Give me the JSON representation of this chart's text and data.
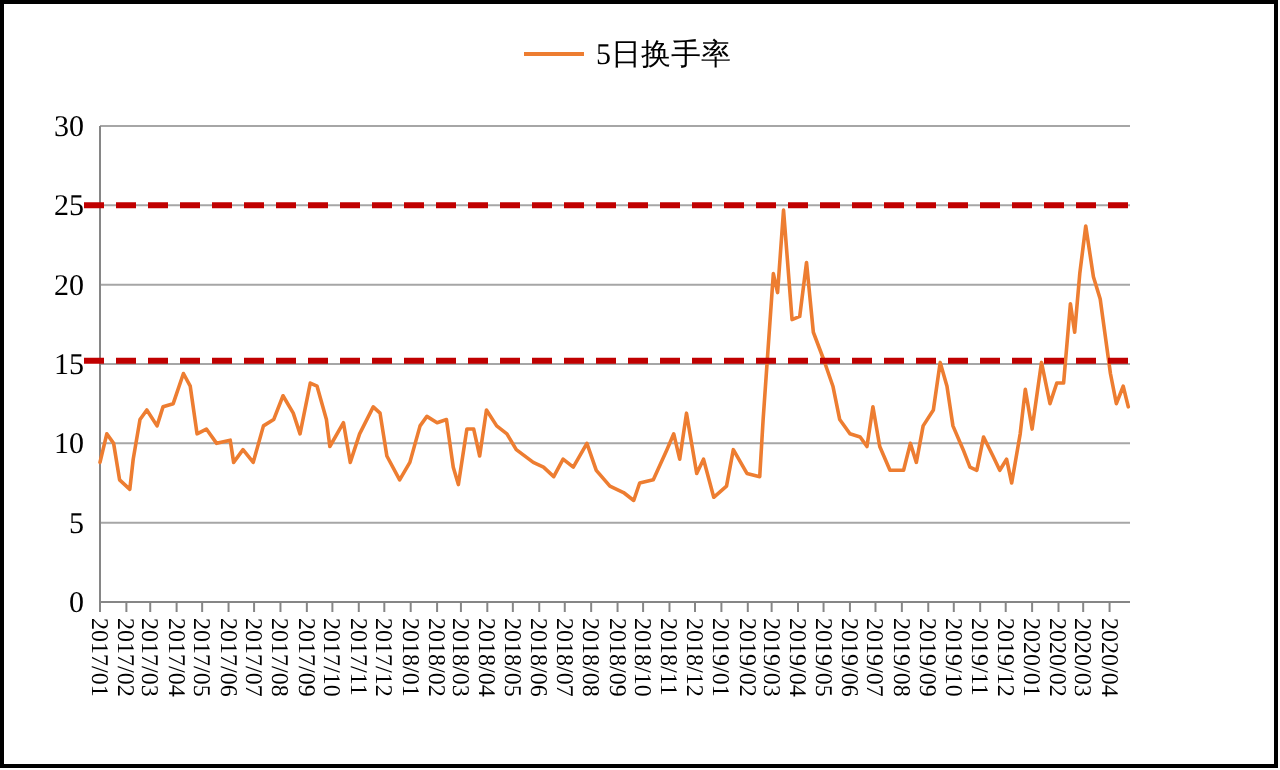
{
  "chart_data": {
    "type": "line",
    "x": [
      "2017-01-01",
      "2017-01-09",
      "2017-01-17",
      "2017-01-24",
      "2017-02-05",
      "2017-02-09",
      "2017-02-17",
      "2017-02-25",
      "2017-03-09",
      "2017-03-16",
      "2017-03-28",
      "2017-04-09",
      "2017-04-17",
      "2017-04-25",
      "2017-05-06",
      "2017-05-18",
      "2017-06-03",
      "2017-06-07",
      "2017-06-18",
      "2017-06-30",
      "2017-07-12",
      "2017-07-24",
      "2017-08-04",
      "2017-08-16",
      "2017-08-24",
      "2017-09-05",
      "2017-09-13",
      "2017-09-24",
      "2017-09-28",
      "2017-10-14",
      "2017-10-22",
      "2017-11-02",
      "2017-11-18",
      "2017-11-26",
      "2017-12-04",
      "2017-12-19",
      "2017-12-31",
      "2018-01-12",
      "2018-01-20",
      "2018-02-01",
      "2018-02-12",
      "2018-02-20",
      "2018-02-26",
      "2018-03-08",
      "2018-03-16",
      "2018-03-23",
      "2018-03-31",
      "2018-04-12",
      "2018-04-24",
      "2018-05-05",
      "2018-05-25",
      "2018-06-06",
      "2018-06-18",
      "2018-06-29",
      "2018-07-11",
      "2018-07-27",
      "2018-08-07",
      "2018-08-23",
      "2018-09-08",
      "2018-09-20",
      "2018-09-27",
      "2018-10-13",
      "2018-10-29",
      "2018-11-06",
      "2018-11-13",
      "2018-11-21",
      "2018-12-03",
      "2018-12-11",
      "2018-12-23",
      "2019-01-07",
      "2019-01-15",
      "2019-01-31",
      "2019-02-15",
      "2019-02-19",
      "2019-03-03",
      "2019-03-08",
      "2019-03-15",
      "2019-03-25",
      "2019-04-03",
      "2019-04-11",
      "2019-04-19",
      "2019-05-01",
      "2019-05-12",
      "2019-05-20",
      "2019-06-01",
      "2019-06-13",
      "2019-06-21",
      "2019-06-28",
      "2019-07-06",
      "2019-07-18",
      "2019-08-03",
      "2019-08-11",
      "2019-08-18",
      "2019-08-26",
      "2019-09-07",
      "2019-09-15",
      "2019-09-23",
      "2019-09-30",
      "2019-10-12",
      "2019-10-20",
      "2019-10-28",
      "2019-11-05",
      "2019-11-16",
      "2019-11-24",
      "2019-12-02",
      "2019-12-08",
      "2019-12-18",
      "2019-12-24",
      "2020-01-01",
      "2020-01-12",
      "2020-01-22",
      "2020-01-30",
      "2020-02-07",
      "2020-02-15",
      "2020-02-20",
      "2020-02-26",
      "2020-03-04",
      "2020-03-13",
      "2020-03-21",
      "2020-04-02",
      "2020-04-09",
      "2020-04-17",
      "2020-04-23"
    ],
    "series": [
      {
        "name": "5日换手率",
        "color": "#ed7d31",
        "values": [
          8.8,
          10.6,
          10.0,
          7.7,
          7.1,
          9.0,
          11.5,
          12.1,
          11.1,
          12.3,
          12.5,
          14.4,
          13.6,
          10.6,
          10.9,
          10.0,
          10.2,
          8.8,
          9.6,
          8.8,
          11.1,
          11.5,
          13.0,
          11.9,
          10.6,
          13.8,
          13.6,
          11.5,
          9.8,
          11.3,
          8.8,
          10.6,
          12.3,
          11.9,
          9.2,
          7.7,
          8.8,
          11.1,
          11.7,
          11.3,
          11.5,
          8.5,
          7.4,
          10.9,
          10.9,
          9.2,
          12.1,
          11.1,
          10.6,
          9.6,
          8.8,
          8.5,
          7.9,
          9.0,
          8.5,
          10.0,
          8.3,
          7.3,
          6.9,
          6.4,
          7.5,
          7.7,
          9.6,
          10.6,
          9.0,
          11.9,
          8.1,
          9.0,
          6.6,
          7.3,
          9.6,
          8.1,
          7.9,
          11.5,
          20.7,
          19.5,
          24.7,
          17.8,
          18.0,
          21.4,
          17.0,
          15.3,
          13.6,
          11.5,
          10.6,
          10.4,
          9.8,
          12.3,
          9.8,
          8.3,
          8.3,
          10.0,
          8.8,
          11.1,
          12.1,
          15.1,
          13.6,
          11.1,
          9.6,
          8.5,
          8.3,
          10.4,
          9.2,
          8.3,
          9.0,
          7.5,
          10.6,
          13.4,
          10.9,
          15.1,
          12.5,
          13.8,
          13.8,
          18.8,
          17.0,
          20.7,
          23.7,
          20.5,
          19.1,
          14.4,
          12.5,
          13.6,
          12.3
        ]
      }
    ],
    "xlim": [
      "2017-01-01",
      "2020-04-25"
    ],
    "xticks": [
      {
        "value": "2017-01-01",
        "label": "2017/01"
      },
      {
        "value": "2017-02-01",
        "label": "2017/02"
      },
      {
        "value": "2017-03-01",
        "label": "2017/03"
      },
      {
        "value": "2017-04-01",
        "label": "2017/04"
      },
      {
        "value": "2017-05-01",
        "label": "2017/05"
      },
      {
        "value": "2017-06-01",
        "label": "2017/06"
      },
      {
        "value": "2017-07-01",
        "label": "2017/07"
      },
      {
        "value": "2017-08-01",
        "label": "2017/08"
      },
      {
        "value": "2017-09-01",
        "label": "2017/09"
      },
      {
        "value": "2017-10-01",
        "label": "2017/10"
      },
      {
        "value": "2017-11-01",
        "label": "2017/11"
      },
      {
        "value": "2017-12-01",
        "label": "2017/12"
      },
      {
        "value": "2018-01-01",
        "label": "2018/01"
      },
      {
        "value": "2018-02-01",
        "label": "2018/02"
      },
      {
        "value": "2018-03-01",
        "label": "2018/03"
      },
      {
        "value": "2018-04-01",
        "label": "2018/04"
      },
      {
        "value": "2018-05-01",
        "label": "2018/05"
      },
      {
        "value": "2018-06-01",
        "label": "2018/06"
      },
      {
        "value": "2018-07-01",
        "label": "2018/07"
      },
      {
        "value": "2018-08-01",
        "label": "2018/08"
      },
      {
        "value": "2018-09-01",
        "label": "2018/09"
      },
      {
        "value": "2018-10-01",
        "label": "2018/10"
      },
      {
        "value": "2018-11-01",
        "label": "2018/11"
      },
      {
        "value": "2018-12-01",
        "label": "2018/12"
      },
      {
        "value": "2019-01-01",
        "label": "2019/01"
      },
      {
        "value": "2019-02-01",
        "label": "2019/02"
      },
      {
        "value": "2019-03-01",
        "label": "2019/03"
      },
      {
        "value": "2019-04-01",
        "label": "2019/04"
      },
      {
        "value": "2019-05-01",
        "label": "2019/05"
      },
      {
        "value": "2019-06-01",
        "label": "2019/06"
      },
      {
        "value": "2019-07-01",
        "label": "2019/07"
      },
      {
        "value": "2019-08-01",
        "label": "2019/08"
      },
      {
        "value": "2019-09-01",
        "label": "2019/09"
      },
      {
        "value": "2019-10-01",
        "label": "2019/10"
      },
      {
        "value": "2019-11-01",
        "label": "2019/11"
      },
      {
        "value": "2019-12-01",
        "label": "2019/12"
      },
      {
        "value": "2020-01-01",
        "label": "2020/01"
      },
      {
        "value": "2020-02-01",
        "label": "2020/02"
      },
      {
        "value": "2020-03-01",
        "label": "2020/03"
      },
      {
        "value": "2020-04-01",
        "label": "2020/04"
      }
    ],
    "ylim": [
      0,
      30
    ],
    "yticks": [
      0,
      5,
      10,
      15,
      20,
      25,
      30
    ],
    "grid": "y",
    "legend": "top",
    "marker": "none",
    "line_style": "solid",
    "ref_lines": [
      {
        "axis": "y",
        "value": 25,
        "color": "#c00000",
        "line_style": "dashed"
      },
      {
        "axis": "y",
        "value": 15.2,
        "color": "#c00000",
        "line_style": "dashed"
      }
    ]
  }
}
